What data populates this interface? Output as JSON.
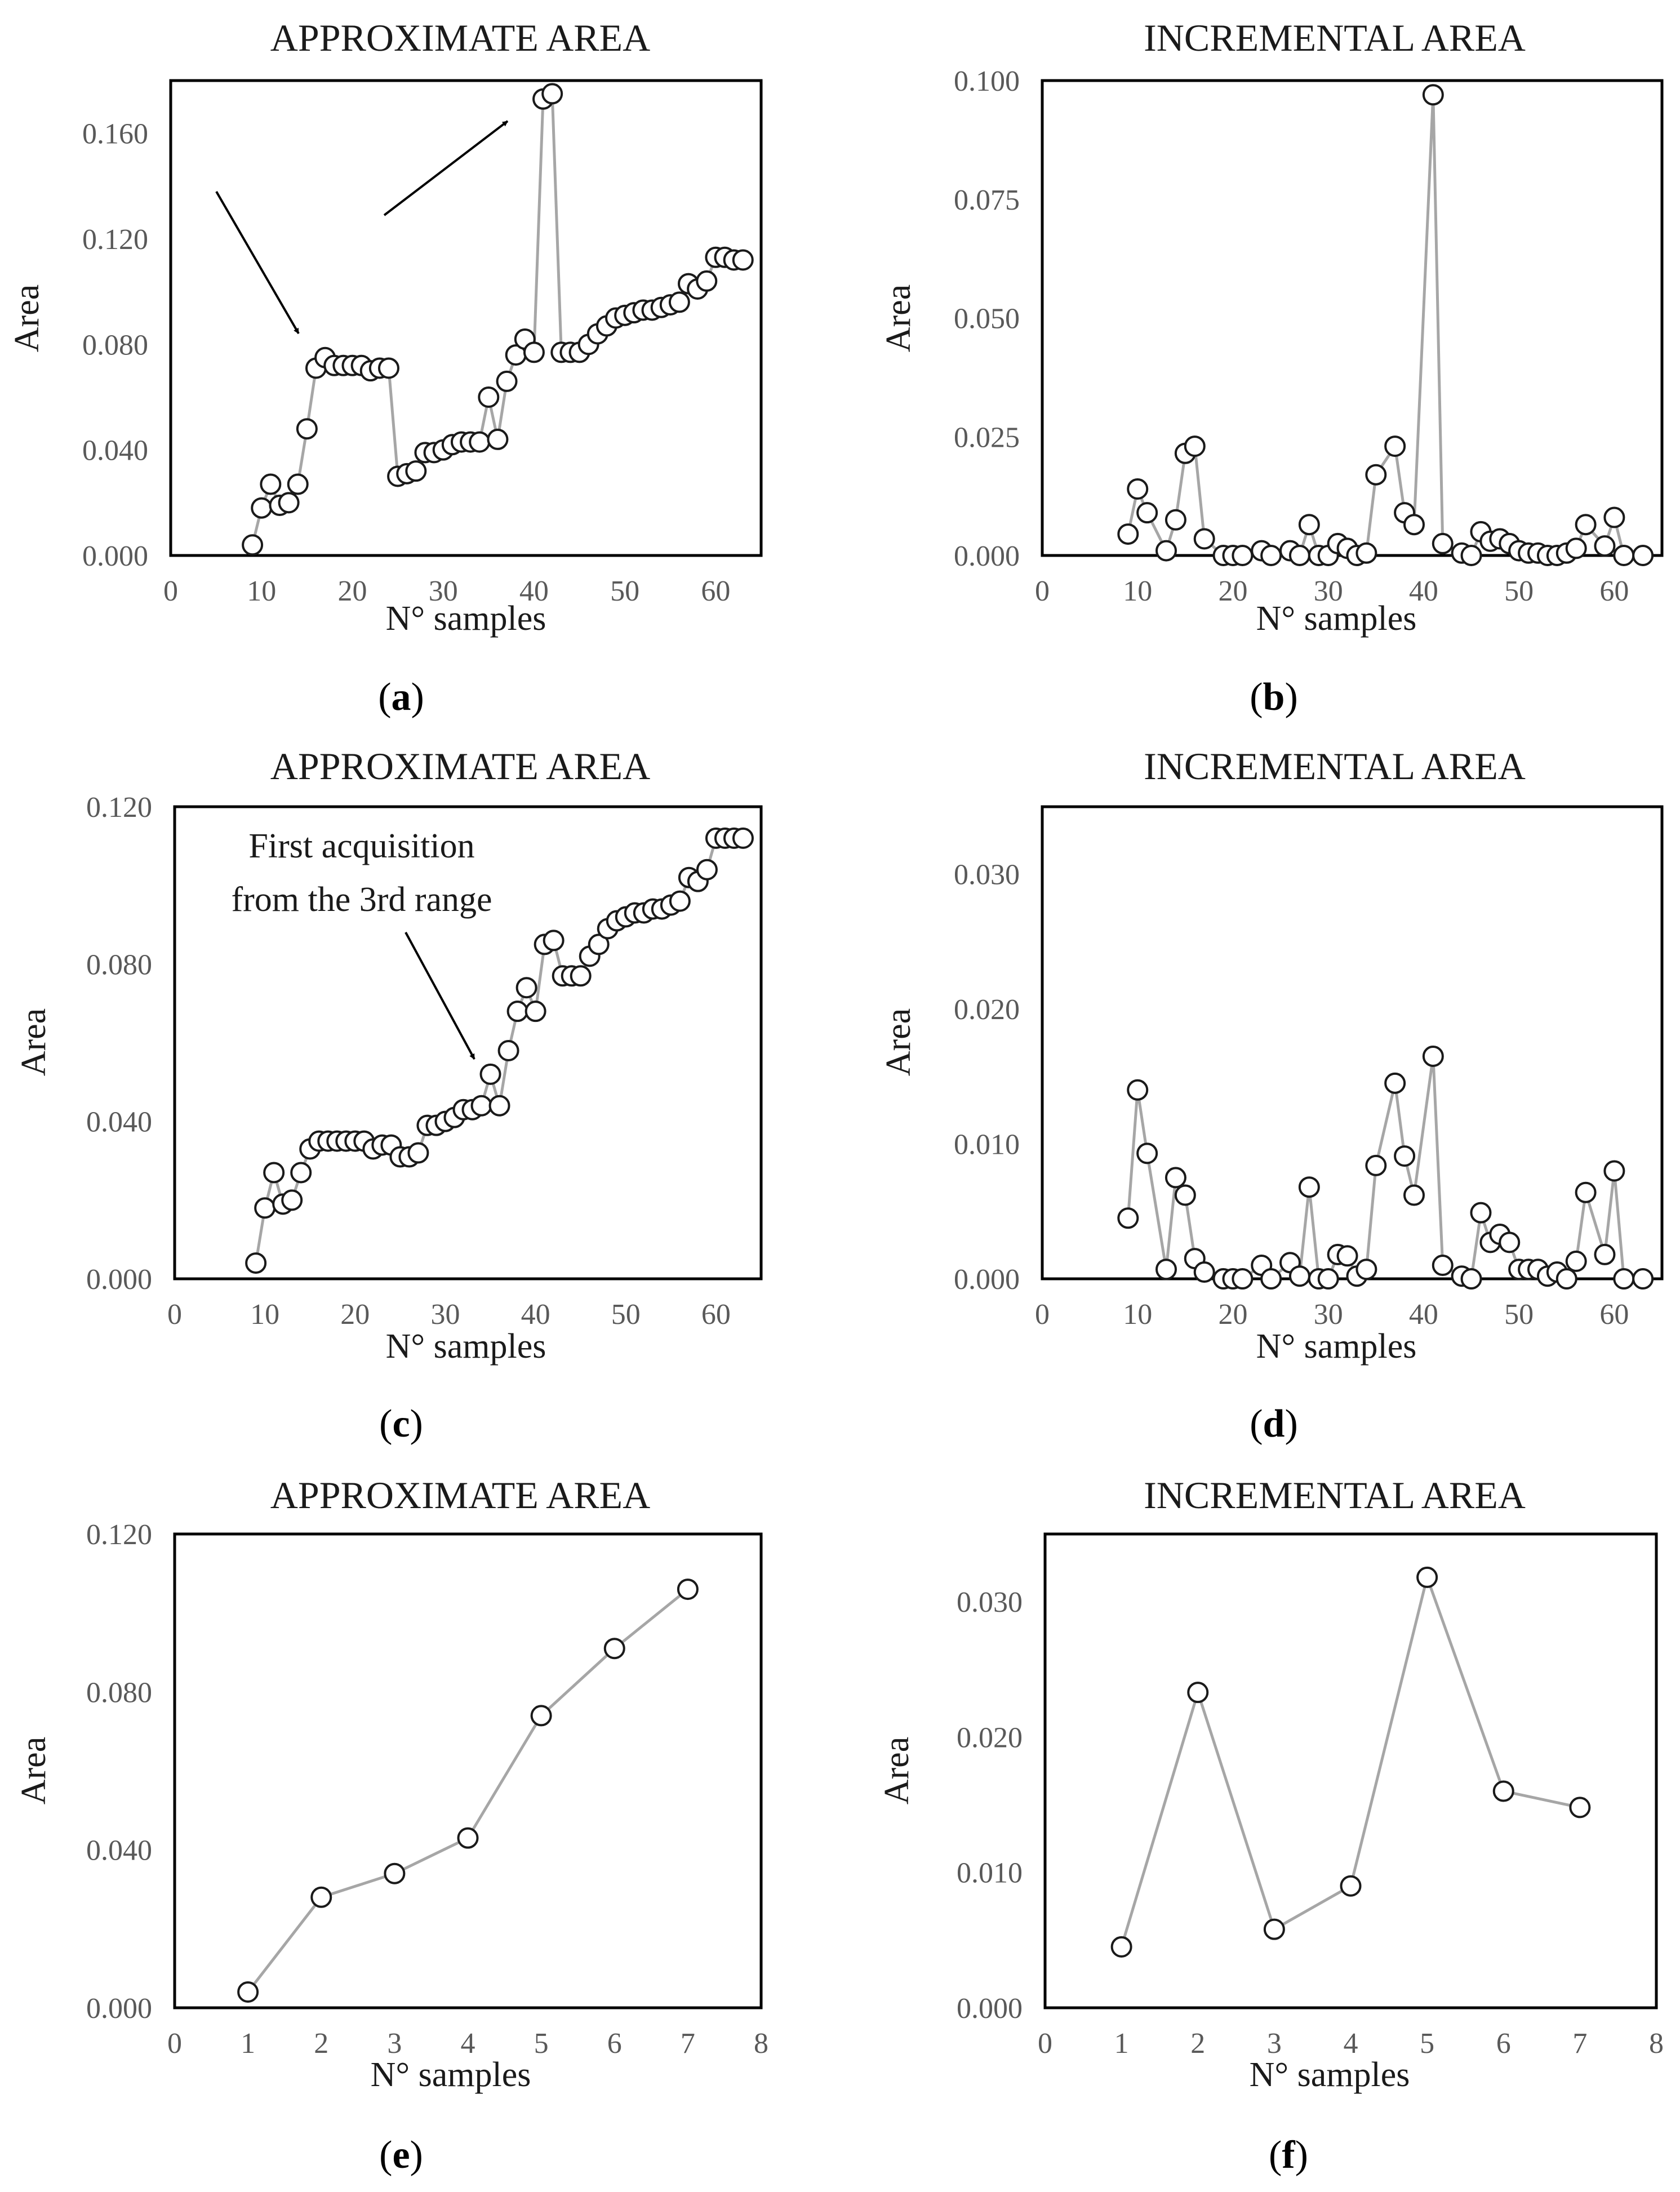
{
  "figure": {
    "panels": [
      {
        "id": "a",
        "label_open": "(",
        "label_letter": "a",
        "label_close": ")"
      },
      {
        "id": "b",
        "label_open": "(",
        "label_letter": "b",
        "label_close": ")"
      },
      {
        "id": "c",
        "label_open": "(",
        "label_letter": "c",
        "label_close": ")"
      },
      {
        "id": "d",
        "label_open": "(",
        "label_letter": "d",
        "label_close": ")"
      },
      {
        "id": "e",
        "label_open": "(",
        "label_letter": "e",
        "label_close": ")"
      },
      {
        "id": "f",
        "label_open": "(",
        "label_letter": "f",
        "label_close": ")"
      }
    ]
  },
  "chart_data": [
    {
      "id": "a",
      "type": "line",
      "title": "APPROXIMATE AREA",
      "xlabel": "N° samples",
      "ylabel": "Area",
      "xlim": [
        0,
        65
      ],
      "ylim": [
        0,
        0.18
      ],
      "xticks": [
        "0",
        "10",
        "20",
        "30",
        "40",
        "50",
        "60"
      ],
      "yticks": [
        "0.000",
        "0.040",
        "0.080",
        "0.120",
        "0.160"
      ],
      "series": [
        {
          "name": "Approximate area",
          "x": [
            9,
            10,
            11,
            12,
            13,
            14,
            15,
            16,
            17,
            18,
            19,
            20,
            21,
            22,
            23,
            24,
            25,
            26,
            27,
            28,
            29,
            30,
            31,
            32,
            33,
            34,
            35,
            36,
            37,
            38,
            39,
            40,
            41,
            42,
            43,
            44,
            45,
            46,
            47,
            48,
            49,
            50,
            51,
            52,
            53,
            54,
            55,
            56,
            57,
            58,
            59,
            60,
            61,
            62,
            63
          ],
          "y": [
            0.004,
            0.018,
            0.027,
            0.019,
            0.02,
            0.027,
            0.048,
            0.071,
            0.075,
            0.072,
            0.072,
            0.072,
            0.072,
            0.07,
            0.071,
            0.071,
            0.03,
            0.031,
            0.032,
            0.039,
            0.039,
            0.04,
            0.042,
            0.043,
            0.043,
            0.043,
            0.06,
            0.044,
            0.066,
            0.076,
            0.082,
            0.077,
            0.173,
            0.175,
            0.077,
            0.077,
            0.077,
            0.08,
            0.084,
            0.087,
            0.09,
            0.091,
            0.092,
            0.093,
            0.093,
            0.094,
            0.095,
            0.096,
            0.103,
            0.101,
            0.104,
            0.113,
            0.113,
            0.112,
            0.112
          ]
        }
      ],
      "annotations": [
        {
          "text": "",
          "kind": "arrow",
          "target_x": 15,
          "target_y": 0.083
        },
        {
          "text": "",
          "kind": "arrow",
          "target_x": 39,
          "target_y": 0.164
        }
      ]
    },
    {
      "id": "b",
      "type": "line",
      "title": "INCREMENTAL AREA",
      "xlabel": "N° samples",
      "ylabel": "Area",
      "xlim": [
        0,
        65
      ],
      "ylim": [
        0,
        0.1
      ],
      "xticks": [
        "0",
        "10",
        "20",
        "30",
        "40",
        "50",
        "60"
      ],
      "yticks": [
        "0.000",
        "0.025",
        "0.050",
        "0.075",
        "0.100"
      ],
      "series": [
        {
          "name": "Incremental area",
          "x": [
            9,
            10,
            11,
            13,
            14,
            15,
            16,
            17,
            19,
            20,
            21,
            23,
            24,
            26,
            27,
            28,
            29,
            30,
            31,
            32,
            33,
            34,
            35,
            37,
            38,
            39,
            41,
            42,
            44,
            45,
            46,
            47,
            48,
            49,
            50,
            51,
            52,
            53,
            54,
            55,
            56,
            57,
            59,
            60,
            61,
            63
          ],
          "y": [
            0.0045,
            0.014,
            0.009,
            0.001,
            0.0075,
            0.0215,
            0.023,
            0.0035,
            0.0,
            0.0,
            0.0,
            0.001,
            0.0,
            0.001,
            0.0,
            0.0065,
            0.0,
            0.0,
            0.0025,
            0.0015,
            0.0,
            0.0005,
            0.017,
            0.023,
            0.009,
            0.0065,
            0.097,
            0.0025,
            0.0005,
            0.0,
            0.005,
            0.003,
            0.0035,
            0.0025,
            0.001,
            0.0005,
            0.0005,
            0.0,
            0.0,
            0.0005,
            0.0015,
            0.0065,
            0.002,
            0.008,
            0.0,
            0.0
          ]
        }
      ]
    },
    {
      "id": "c",
      "type": "line",
      "title": "APPROXIMATE AREA",
      "xlabel": "N° samples",
      "ylabel": "Area",
      "xlim": [
        0,
        65
      ],
      "ylim": [
        0,
        0.12
      ],
      "xticks": [
        "0",
        "10",
        "20",
        "30",
        "40",
        "50",
        "60"
      ],
      "yticks": [
        "0.000",
        "0.040",
        "0.080",
        "0.120"
      ],
      "series": [
        {
          "name": "Approximate area",
          "x": [
            9,
            10,
            11,
            12,
            13,
            14,
            15,
            16,
            17,
            18,
            19,
            20,
            21,
            22,
            23,
            24,
            25,
            26,
            27,
            28,
            29,
            30,
            31,
            32,
            33,
            34,
            35,
            36,
            37,
            38,
            39,
            40,
            41,
            42,
            43,
            44,
            45,
            46,
            47,
            48,
            49,
            50,
            51,
            52,
            53,
            54,
            55,
            56,
            57,
            58,
            59,
            60,
            61,
            62,
            63
          ],
          "y": [
            0.004,
            0.018,
            0.027,
            0.019,
            0.02,
            0.027,
            0.033,
            0.035,
            0.035,
            0.035,
            0.035,
            0.035,
            0.035,
            0.033,
            0.034,
            0.034,
            0.031,
            0.031,
            0.032,
            0.039,
            0.039,
            0.04,
            0.041,
            0.043,
            0.043,
            0.044,
            0.052,
            0.044,
            0.058,
            0.068,
            0.074,
            0.068,
            0.085,
            0.086,
            0.077,
            0.077,
            0.077,
            0.082,
            0.085,
            0.089,
            0.091,
            0.092,
            0.093,
            0.093,
            0.094,
            0.094,
            0.095,
            0.096,
            0.102,
            0.101,
            0.104,
            0.112,
            0.112,
            0.112,
            0.112
          ]
        }
      ],
      "annotations": [
        {
          "text": "First acquisition",
          "kind": "label"
        },
        {
          "text": "from the 3rd range",
          "kind": "label"
        },
        {
          "text": "",
          "kind": "arrow",
          "target_x": 34,
          "target_y": 0.055
        }
      ]
    },
    {
      "id": "d",
      "type": "line",
      "title": "INCREMENTAL AREA",
      "xlabel": "N° samples",
      "ylabel": "Area",
      "xlim": [
        0,
        65
      ],
      "ylim": [
        0,
        0.035
      ],
      "xticks": [
        "0",
        "10",
        "20",
        "30",
        "40",
        "50",
        "60"
      ],
      "yticks": [
        "0.000",
        "0.010",
        "0.020",
        "0.030"
      ],
      "series": [
        {
          "name": "Incremental area",
          "x": [
            9,
            10,
            11,
            13,
            14,
            15,
            16,
            17,
            19,
            20,
            21,
            23,
            24,
            26,
            27,
            28,
            29,
            30,
            31,
            32,
            33,
            34,
            35,
            37,
            38,
            39,
            41,
            42,
            44,
            45,
            46,
            47,
            48,
            49,
            50,
            51,
            52,
            53,
            54,
            55,
            56,
            57,
            59,
            60,
            61,
            63
          ],
          "y": [
            0.0045,
            0.014,
            0.0093,
            0.0007,
            0.0075,
            0.0062,
            0.0015,
            0.0005,
            0.0,
            0.0,
            0.0,
            0.001,
            0.0,
            0.0012,
            0.0002,
            0.0068,
            0.0,
            0.0,
            0.0018,
            0.0017,
            0.0002,
            0.0007,
            0.0084,
            0.0145,
            0.0091,
            0.0062,
            0.0165,
            0.001,
            0.0002,
            0.0,
            0.0049,
            0.0027,
            0.0033,
            0.0027,
            0.0007,
            0.0007,
            0.0007,
            0.0002,
            0.0005,
            0.0,
            0.0013,
            0.0064,
            0.0018,
            0.008,
            0.0,
            0.0
          ]
        }
      ]
    },
    {
      "id": "e",
      "type": "line",
      "title": "APPROXIMATE AREA",
      "xlabel": "N° samples",
      "ylabel": "Area",
      "xlim": [
        0,
        8
      ],
      "ylim": [
        0,
        0.12
      ],
      "xticks": [
        "0",
        "1",
        "2",
        "3",
        "4",
        "5",
        "6",
        "7",
        "8"
      ],
      "yticks": [
        "0.000",
        "0.040",
        "0.080",
        "0.120"
      ],
      "series": [
        {
          "name": "Approximate area",
          "x": [
            1,
            2,
            3,
            4,
            5,
            6,
            7
          ],
          "y": [
            0.004,
            0.028,
            0.034,
            0.043,
            0.074,
            0.091,
            0.106
          ]
        }
      ]
    },
    {
      "id": "f",
      "type": "line",
      "title": "INCREMENTAL AREA",
      "xlabel": "N° samples",
      "ylabel": "Area",
      "xlim": [
        0,
        8
      ],
      "ylim": [
        0,
        0.035
      ],
      "xticks": [
        "0",
        "1",
        "2",
        "3",
        "4",
        "5",
        "6",
        "7",
        "8"
      ],
      "yticks": [
        "0.000",
        "0.010",
        "0.020",
        "0.030"
      ],
      "series": [
        {
          "name": "Incremental area",
          "x": [
            1,
            2,
            3,
            4,
            5,
            6,
            7
          ],
          "y": [
            0.0045,
            0.0233,
            0.0058,
            0.009,
            0.0318,
            0.016,
            0.0148
          ]
        }
      ]
    }
  ]
}
